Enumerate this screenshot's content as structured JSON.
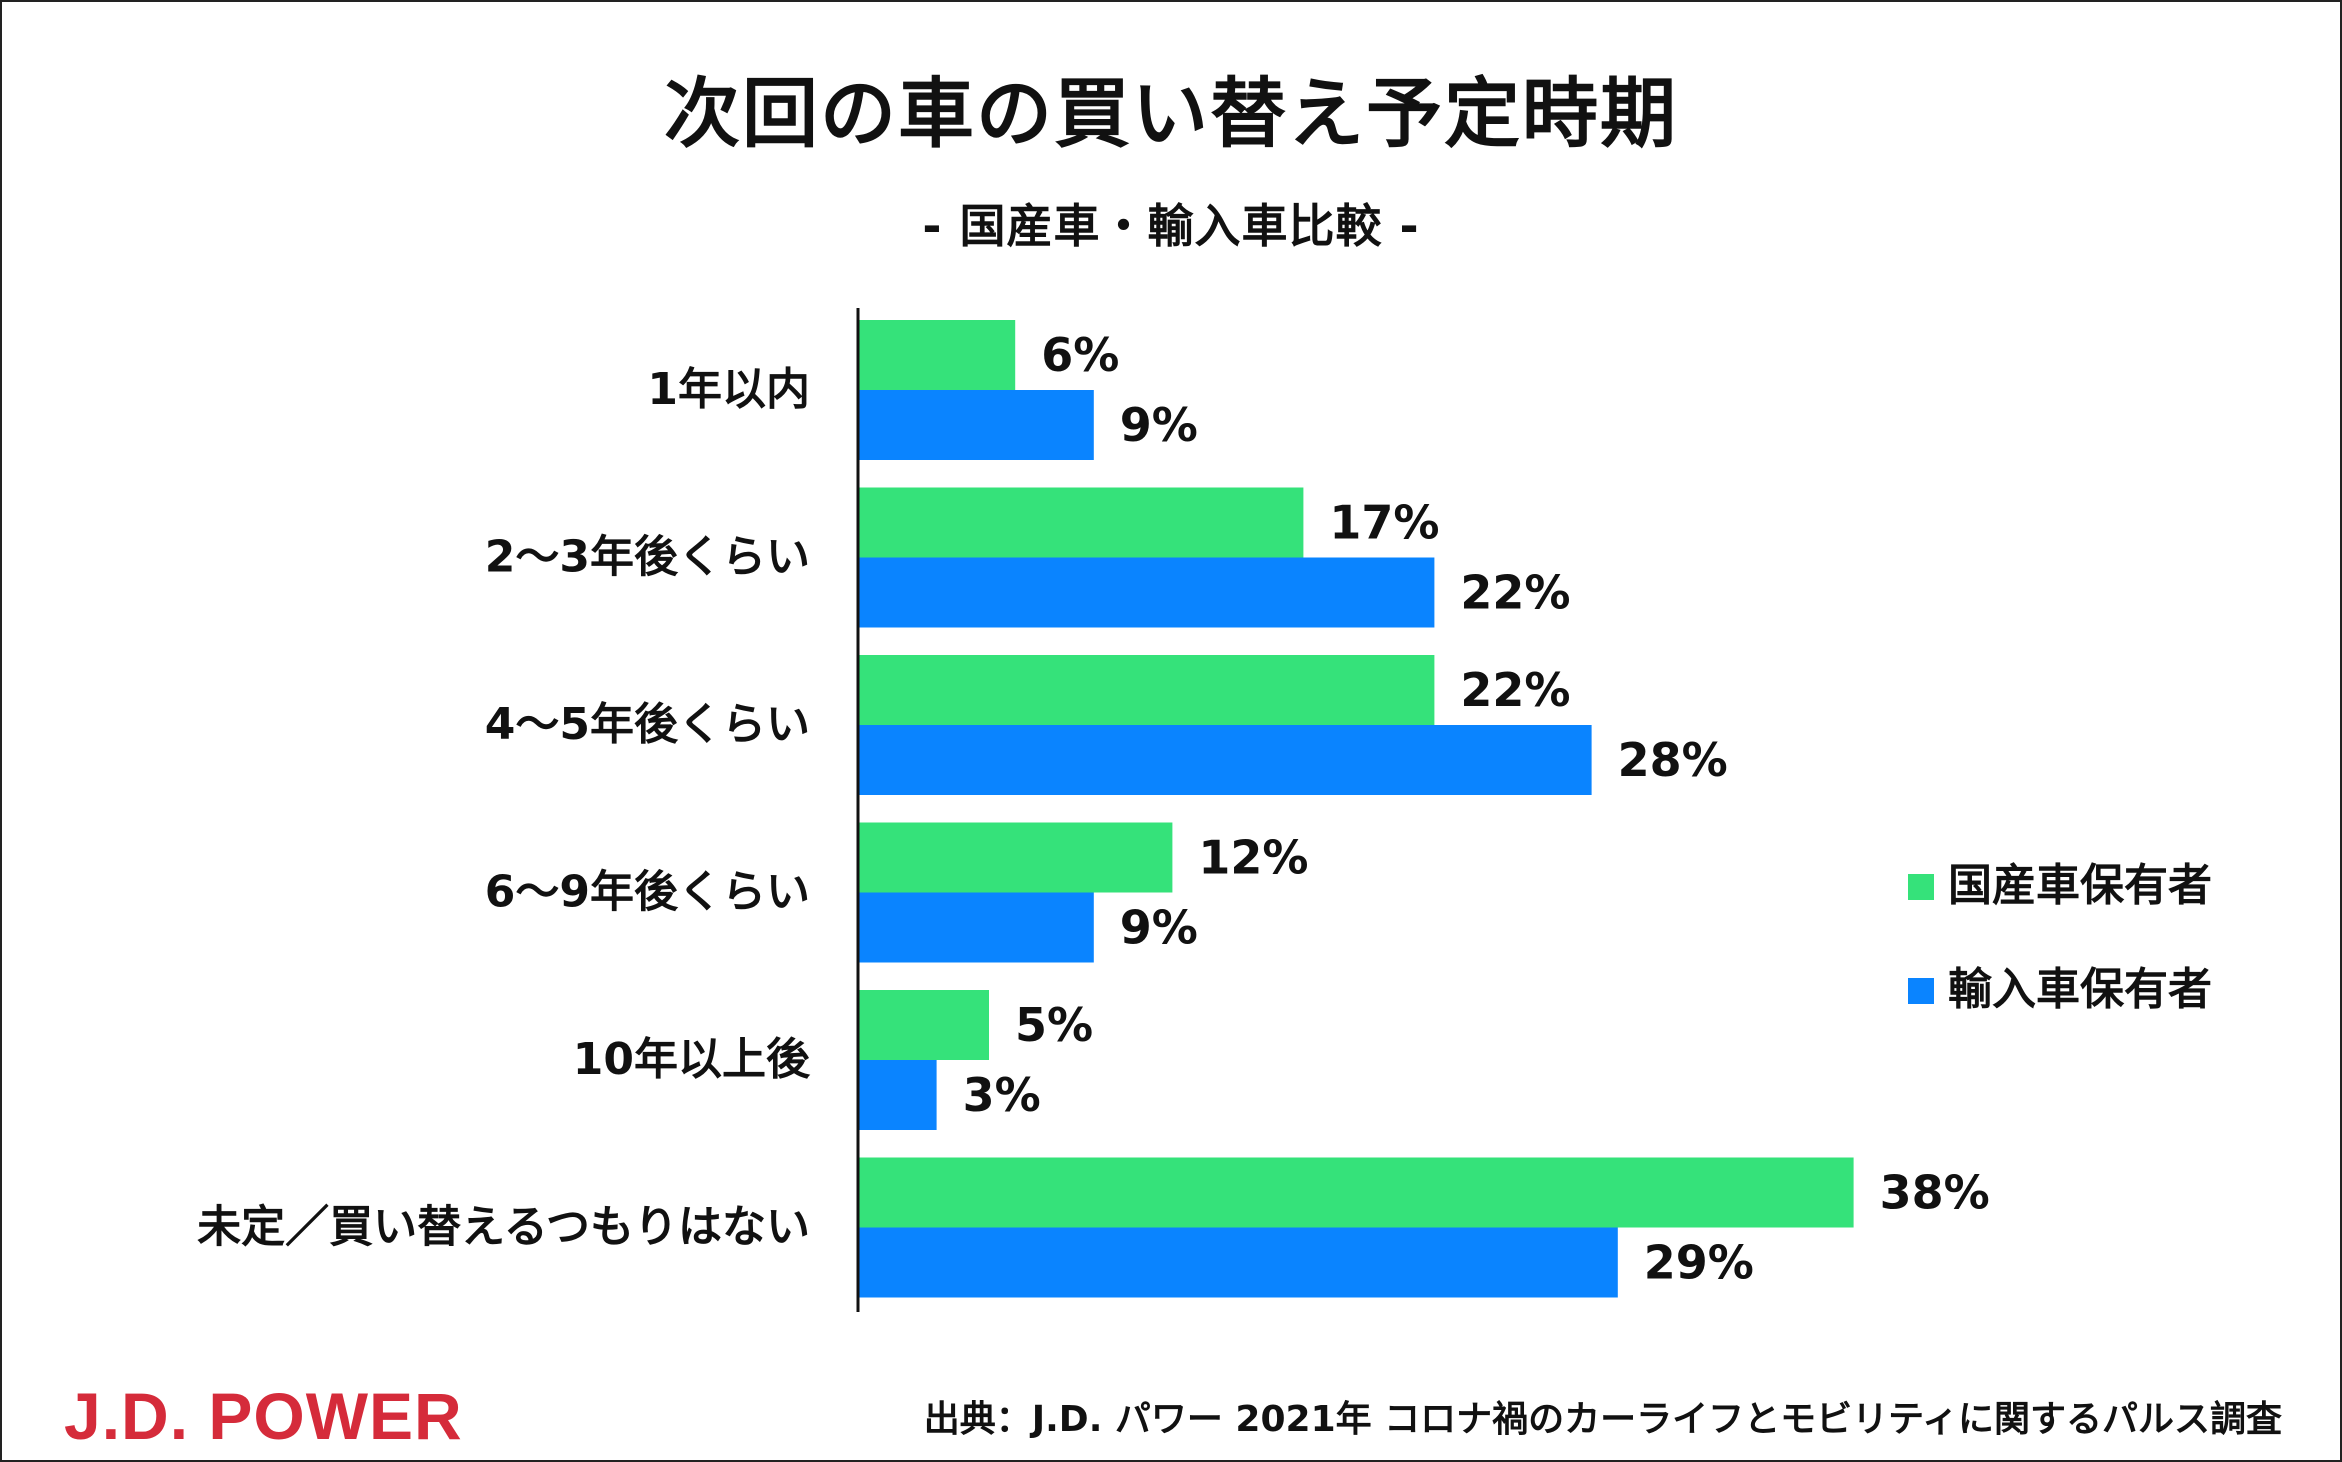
{
  "header": {
    "title": "次回の車の買い替え予定時期",
    "subtitle": "- 国産車・輸入車比較 -"
  },
  "footer": {
    "brand": "J.D. POWER",
    "source": "出典：J.D. パワー 2021年 コロナ禍のカーライフとモビリティに関するパルス調査"
  },
  "chart_data": {
    "type": "bar",
    "orientation": "horizontal",
    "categories": [
      "1年以内",
      "2～3年後くらい",
      "4～5年後くらい",
      "6～9年後くらい",
      "10年以上後",
      "未定／買い替えるつもりはない"
    ],
    "series": [
      {
        "name": "国産車保有者",
        "values": [
          6,
          17,
          22,
          12,
          5,
          38
        ],
        "labels": [
          "6%",
          "17%",
          "22%",
          "12%",
          "5%",
          "38%"
        ],
        "color": "#35e27a"
      },
      {
        "name": "輸入車保有者",
        "values": [
          9,
          22,
          28,
          9,
          3,
          29
        ],
        "labels": [
          "9%",
          "22%",
          "28%",
          "9%",
          "3%",
          "29%"
        ],
        "color": "#0a84ff"
      }
    ],
    "title": "次回の車の買い替え予定時期",
    "subtitle": "- 国産車・輸入車比較 -",
    "xlim": [
      0,
      40
    ],
    "grid": false,
    "legend_position": "right"
  }
}
